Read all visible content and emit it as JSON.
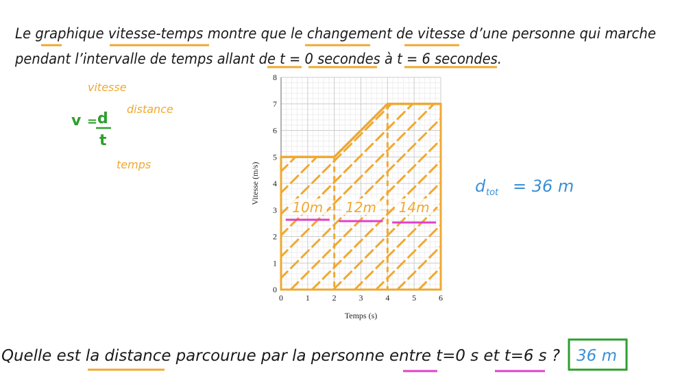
{
  "header": {
    "line1": "Le graphique vitesse-temps montre que le changement de vitesse d’une personne qui marche",
    "line2": "pendant l’intervalle de temps allant de t = 0 secondes à t = 6 secondes."
  },
  "formula": {
    "v": "v",
    "eq": "=",
    "d": "d",
    "t": "t",
    "label_v": "vitesse",
    "label_d": "distance",
    "label_t": "temps"
  },
  "chart_data": {
    "type": "line",
    "x": [
      0,
      2,
      4,
      6
    ],
    "series": [
      {
        "color": "#f0a830",
        "values": [
          5,
          5,
          7,
          7
        ]
      }
    ],
    "xlim": [
      0,
      6
    ],
    "ylim": [
      0,
      8
    ],
    "xticks": [
      0,
      1,
      2,
      3,
      4,
      5,
      6
    ],
    "yticks": [
      0,
      1,
      2,
      3,
      4,
      5,
      6,
      7,
      8
    ],
    "xlabel": "Temps (s)",
    "ylabel": "Vitesse (m/s)",
    "grid": true,
    "annotations": [
      "10m",
      "12m",
      "14m"
    ]
  },
  "total": {
    "d": "d",
    "sub": "tot",
    "rest": "= 36 m"
  },
  "question": {
    "text": "Quelle est la distance parcourue par la personne entre t=0 s et t=6 s ?",
    "answer": "36 m"
  }
}
